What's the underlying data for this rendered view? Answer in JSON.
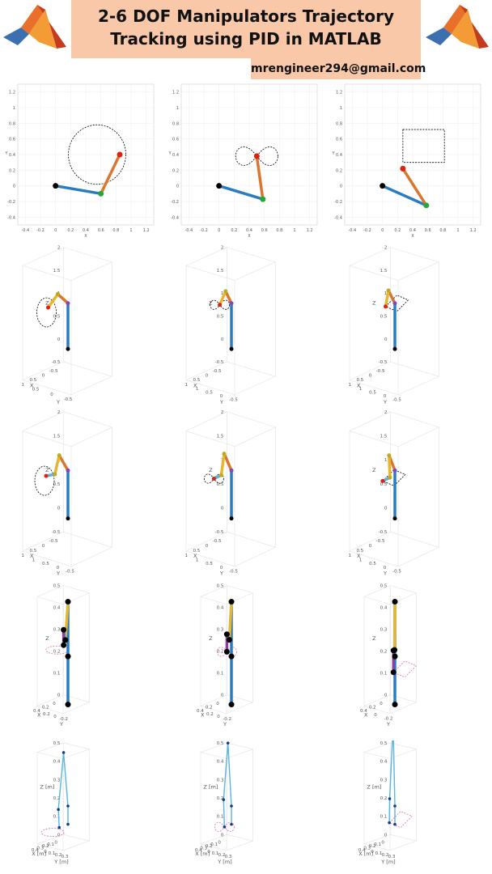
{
  "header": {
    "title_line1": "2-6 DOF Manipulators Trajectory",
    "title_line2": "Tracking using PID in MATLAB",
    "email": "mrengineer294@gmail.com"
  },
  "colors": {
    "link1": "#2b7bbf",
    "link2": "#d9772e",
    "link3": "#e6b62e",
    "link4": "#5ab4e0",
    "link5": "#8b3fa0",
    "joint_black": "#000000",
    "joint_green": "#22aa33",
    "joint_red": "#dd2211",
    "joint_purple": "#8844bb",
    "path": "#000000",
    "target": "#dd2211"
  },
  "icons": {
    "left_logo": "matlab-logo-icon",
    "right_logo": "matlab-logo-icon"
  },
  "chart_data": [
    {
      "type": "2d-manipulator",
      "trajectory": "circle",
      "xticks": [
        "-0.4",
        "-0.2",
        "0",
        "0.2",
        "0.4",
        "0.6",
        "0.8",
        "1",
        "1.2"
      ],
      "yticks": [
        "1.2",
        "1",
        "0.8",
        "0.6",
        "0.4",
        "0.2",
        "0",
        "-0.2",
        "-0.4"
      ],
      "xlim": [
        -0.5,
        1.3
      ],
      "ylim": [
        -0.5,
        1.3
      ],
      "ylabel": "Y",
      "xlabel": "X",
      "joints": [
        [
          0,
          0
        ],
        [
          0.6,
          -0.1
        ],
        [
          0.85,
          0.4
        ]
      ],
      "path": {
        "cx": 0.55,
        "cy": 0.4,
        "r": 0.38
      }
    },
    {
      "type": "2d-manipulator",
      "trajectory": "figure-eight",
      "xticks": [
        "-0.4",
        "-0.2",
        "0",
        "0.2",
        "0.4",
        "0.6",
        "0.8",
        "1",
        "1.2"
      ],
      "yticks": [
        "1.2",
        "1",
        "0.8",
        "0.6",
        "0.4",
        "0.2",
        "0",
        "-0.2",
        "-0.4"
      ],
      "xlim": [
        -0.5,
        1.3
      ],
      "ylim": [
        -0.5,
        1.3
      ],
      "ylabel": "Y",
      "xlabel": "X",
      "joints": [
        [
          0,
          0
        ],
        [
          0.58,
          -0.17
        ],
        [
          0.5,
          0.38
        ]
      ],
      "path": {
        "cx": 0.5,
        "cy": 0.38,
        "a": 0.28
      }
    },
    {
      "type": "2d-manipulator",
      "trajectory": "square",
      "xticks": [
        "-0.4",
        "-0.2",
        "0",
        "0.2",
        "0.4",
        "0.6",
        "0.8",
        "1",
        "1.2"
      ],
      "yticks": [
        "1.2",
        "1",
        "0.8",
        "0.6",
        "0.4",
        "0.2",
        "0",
        "-0.2",
        "-0.4"
      ],
      "xlim": [
        -0.5,
        1.3
      ],
      "ylim": [
        -0.5,
        1.3
      ],
      "ylabel": "Y",
      "xlabel": "X",
      "joints": [
        [
          0,
          0
        ],
        [
          0.58,
          -0.25
        ],
        [
          0.27,
          0.22
        ]
      ],
      "path": {
        "x0": 0.27,
        "y0": 0.3,
        "x1": 0.82,
        "y1": 0.72
      }
    },
    {
      "type": "3d-manipulator",
      "trajectory": "circle",
      "zticks": [
        "2",
        "1.5",
        "1",
        "0.5",
        "0",
        "-0.5"
      ],
      "xticks": [
        "-0.5",
        "0",
        "0.5",
        "1"
      ],
      "yticks": [
        "0.5",
        "0",
        "-0.5"
      ],
      "xlabel": "X",
      "ylabel": "Y",
      "zlabel": "Z",
      "joints": [
        [
          0,
          0,
          0
        ],
        [
          0,
          0,
          1
        ],
        [
          0.35,
          0,
          1.3
        ],
        [
          0.68,
          0,
          1.1
        ]
      ]
    },
    {
      "type": "3d-manipulator",
      "trajectory": "figure-eight",
      "zticks": [
        "2",
        "1.5",
        "1",
        "0.5",
        "0",
        "-0.5"
      ],
      "xticks": [
        "-0.5",
        "0",
        "0.5",
        "1"
      ],
      "yticks": [
        "1",
        "0.5",
        "0",
        "-0.5"
      ],
      "xlabel": "X",
      "ylabel": "Y",
      "zlabel": "Z",
      "joints": [
        [
          0,
          0,
          0
        ],
        [
          0,
          0,
          1
        ],
        [
          0.2,
          0,
          1.32
        ],
        [
          0.4,
          0,
          1.08
        ]
      ]
    },
    {
      "type": "3d-manipulator",
      "trajectory": "square",
      "zticks": [
        "2",
        "1.5",
        "1",
        "0.5",
        "0",
        "-0.5"
      ],
      "xticks": [
        "-0.5",
        "0",
        "0.5",
        "1"
      ],
      "yticks": [
        "1",
        "0.5",
        "0",
        "-0.5"
      ],
      "xlabel": "X",
      "ylabel": "Y",
      "zlabel": "Z",
      "joints": [
        [
          0,
          0,
          0
        ],
        [
          0,
          0,
          1
        ],
        [
          0.22,
          0,
          1.34
        ],
        [
          0.32,
          0,
          1.02
        ]
      ]
    },
    {
      "type": "3d-manipulator",
      "trajectory": "circle",
      "zticks": [
        "2",
        "1.5",
        "1",
        "0.5",
        "0",
        "-0.5"
      ],
      "xticks": [
        "-0.5",
        "0",
        "0.5",
        "1"
      ],
      "yticks": [
        "1",
        "0.5",
        "0",
        "-0.5"
      ],
      "xlabel": "X",
      "ylabel": "Y",
      "zlabel": "Z",
      "joints": [
        [
          0,
          0,
          0
        ],
        [
          0,
          0,
          1
        ],
        [
          0.3,
          0,
          1.4
        ],
        [
          0.45,
          0,
          1.05
        ],
        [
          0.75,
          0,
          1.1
        ]
      ]
    },
    {
      "type": "3d-manipulator",
      "trajectory": "figure-eight",
      "zticks": [
        "2",
        "1.5",
        "1",
        "0.5",
        "0",
        "-0.5"
      ],
      "xticks": [
        "-0.5",
        "0",
        "0.5",
        "1"
      ],
      "yticks": [
        "1",
        "0.5",
        "0",
        "-0.5"
      ],
      "xlabel": "X",
      "ylabel": "Y",
      "zlabel": "Z",
      "joints": [
        [
          0,
          0,
          0
        ],
        [
          0,
          0,
          1
        ],
        [
          0.25,
          0,
          1.42
        ],
        [
          0.35,
          0,
          1.0
        ],
        [
          0.6,
          0,
          1.0
        ]
      ]
    },
    {
      "type": "3d-manipulator",
      "trajectory": "square",
      "zticks": [
        "2",
        "1.5",
        "1",
        "0.5",
        "0",
        "-0.5"
      ],
      "xticks": [
        "-0.5",
        "0",
        "0.5",
        "1"
      ],
      "yticks": [
        "1",
        "0.5",
        "0",
        "-0.5"
      ],
      "xlabel": "X",
      "ylabel": "Y",
      "zlabel": "Z",
      "joints": [
        [
          0,
          0,
          0
        ],
        [
          0,
          0,
          1
        ],
        [
          0.2,
          0,
          1.37
        ],
        [
          0.17,
          0,
          0.9
        ],
        [
          0.42,
          0,
          0.9
        ]
      ]
    },
    {
      "type": "3d-manipulator",
      "trajectory": "circle",
      "zticks": [
        "0.5",
        "0.4",
        "0.3",
        "0.2",
        "0.1",
        "0"
      ],
      "xticks": [
        "0",
        "0.2",
        "0.4"
      ],
      "yticks": [
        "0.2",
        "0",
        "-0.2"
      ],
      "xlabel": "X",
      "ylabel": "Y",
      "zlabel": "Z",
      "joints": [
        [
          0,
          0,
          0
        ],
        [
          0,
          0,
          0.22
        ],
        [
          0,
          0,
          0.47
        ],
        [
          0.15,
          0,
          0.3
        ],
        [
          0.25,
          0,
          0.35
        ],
        [
          0.25,
          0,
          0.28
        ]
      ]
    },
    {
      "type": "3d-manipulator",
      "trajectory": "figure-eight",
      "zticks": [
        "0.5",
        "0.4",
        "0.3",
        "0.2",
        "0.1",
        "0"
      ],
      "xticks": [
        "0",
        "0.2",
        "0.4"
      ],
      "yticks": [
        "0.2",
        "0",
        "-0.2"
      ],
      "xlabel": "X",
      "ylabel": "Y",
      "zlabel": "Z",
      "joints": [
        [
          0,
          0,
          0
        ],
        [
          0,
          0,
          0.22
        ],
        [
          0,
          0,
          0.47
        ],
        [
          0.12,
          0,
          0.3
        ],
        [
          0.26,
          0,
          0.33
        ],
        [
          0.26,
          0,
          0.25
        ]
      ]
    },
    {
      "type": "3d-manipulator",
      "trajectory": "square",
      "zticks": [
        "0.5",
        "0.4",
        "0.3",
        "0.2",
        "0.1",
        "0"
      ],
      "xticks": [
        "0",
        "0.2",
        "0.4"
      ],
      "yticks": [
        "0",
        "-0.2"
      ],
      "xlabel": "X",
      "ylabel": "Y",
      "zlabel": "Z",
      "joints": [
        [
          0,
          0,
          0
        ],
        [
          0,
          0,
          0.22
        ],
        [
          0,
          0,
          0.47
        ],
        [
          0.02,
          0,
          0.25
        ],
        [
          0.08,
          0,
          0.25
        ],
        [
          0.08,
          0,
          0.15
        ]
      ]
    },
    {
      "type": "3d-manipulator",
      "trajectory": "circle",
      "zticks": [
        "0.5",
        "0.4",
        "0.3",
        "0.2",
        "0.1",
        "0"
      ],
      "xticks": [
        "0",
        "0.1",
        "0.2",
        "0.3",
        "0.4"
      ],
      "yticks": [
        "0",
        "0.1",
        "0.2",
        "0.3"
      ],
      "xlabel": "X [m]",
      "ylabel": "Y [m]",
      "zlabel": "Z [m]",
      "joints": [
        [
          0,
          0,
          0.1
        ],
        [
          0,
          0,
          0.2
        ],
        [
          0.25,
          0,
          0.5
        ],
        [
          0.55,
          0,
          0.2
        ],
        [
          0.5,
          0,
          0.1
        ]
      ]
    },
    {
      "type": "3d-manipulator",
      "trajectory": "figure-eight",
      "zticks": [
        "0.5",
        "0.4",
        "0.3",
        "0.2",
        "0.1",
        "0"
      ],
      "xticks": [
        "0",
        "0.1",
        "0.2",
        "0.3",
        "0.4"
      ],
      "yticks": [
        "0",
        "0.1",
        "0.2",
        "0.3"
      ],
      "xlabel": "X [m]",
      "ylabel": "Y [m]",
      "zlabel": "Z [m]",
      "joints": [
        [
          0,
          0,
          0.1
        ],
        [
          0,
          0,
          0.2
        ],
        [
          0.2,
          0,
          0.55
        ],
        [
          0.45,
          0,
          0.25
        ],
        [
          0.4,
          0,
          0.1
        ]
      ]
    },
    {
      "type": "3d-manipulator",
      "trajectory": "square",
      "zticks": [
        "0.5",
        "0.4",
        "0.3",
        "0.2",
        "0.1",
        "0"
      ],
      "xticks": [
        "0",
        "0.1",
        "0.2",
        "0.3",
        "0.4"
      ],
      "yticks": [
        "0",
        "0.1",
        "0.2",
        "0.3"
      ],
      "xlabel": "X [m]",
      "ylabel": "Y [m]",
      "zlabel": "Z [m]",
      "joints": [
        [
          0,
          0,
          0.1
        ],
        [
          0,
          0,
          0.2
        ],
        [
          0.1,
          0,
          0.65
        ],
        [
          0.3,
          0,
          0.25
        ],
        [
          0.32,
          0,
          0.12
        ]
      ]
    }
  ]
}
